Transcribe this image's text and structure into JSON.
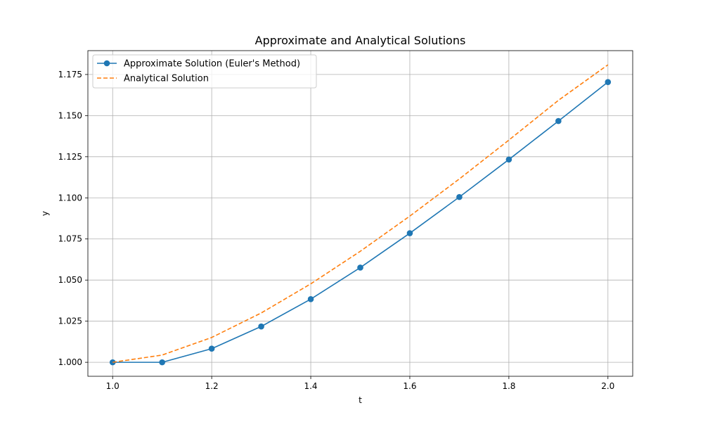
{
  "chart_data": {
    "type": "line",
    "title": "Approximate and Analytical Solutions",
    "xlabel": "t",
    "ylabel": "y",
    "xlim": [
      0.95,
      2.05
    ],
    "ylim": [
      0.9915,
      1.1895
    ],
    "xticks": [
      1.0,
      1.2,
      1.4,
      1.6,
      1.8,
      2.0
    ],
    "xtick_labels": [
      "1.0",
      "1.2",
      "1.4",
      "1.6",
      "1.8",
      "2.0"
    ],
    "yticks": [
      1.0,
      1.025,
      1.05,
      1.075,
      1.1,
      1.125,
      1.15,
      1.175
    ],
    "ytick_labels": [
      "1.000",
      "1.025",
      "1.050",
      "1.075",
      "1.100",
      "1.125",
      "1.150",
      "1.175"
    ],
    "grid": true,
    "legend_position": "top-left",
    "series": [
      {
        "name": "Approximate Solution (Euler's Method)",
        "color": "#1f77b4",
        "style": "solid",
        "marker": "circle",
        "x": [
          1.0,
          1.1,
          1.2,
          1.3,
          1.4,
          1.5,
          1.6,
          1.7,
          1.8,
          1.9,
          2.0
        ],
        "y": [
          1.0,
          1.0,
          1.0083,
          1.0218,
          1.0384,
          1.0576,
          1.0785,
          1.1005,
          1.1233,
          1.1467,
          1.1704
        ]
      },
      {
        "name": "Analytical Solution",
        "color": "#ff7f0e",
        "style": "dashed",
        "marker": "none",
        "x": [
          1.0,
          1.1,
          1.2,
          1.3,
          1.4,
          1.5,
          1.6,
          1.7,
          1.8,
          1.9,
          2.0
        ],
        "y": [
          1.0,
          1.0044,
          1.0151,
          1.03,
          1.0477,
          1.0675,
          1.0889,
          1.1115,
          1.1351,
          1.1593,
          1.1809
        ]
      }
    ]
  }
}
